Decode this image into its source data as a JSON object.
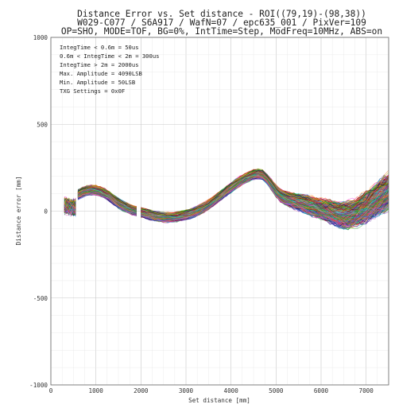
{
  "chart_data": {
    "type": "line",
    "title_lines": [
      "Distance Error vs. Set distance - ROI((79,19)-(98,38))",
      "W029-C077 / S6A917 / WafN=07 / epc635_001 / PixVer=109",
      "OP=SHO, MODE=TOF, BG=0%, IntTime=Step, ModFreq=10MHz, ABS=on"
    ],
    "xlabel": "Set distance [mm]",
    "ylabel": "Distance error [mm]",
    "xlim": [
      0,
      7500
    ],
    "ylim": [
      -1000,
      1000
    ],
    "x_ticks": [
      0,
      1000,
      2000,
      3000,
      4000,
      5000,
      6000,
      7000
    ],
    "y_ticks": [
      -1000,
      -500,
      0,
      500,
      1000
    ],
    "grid": true,
    "settings_box": [
      "IntegTime < 0.6m = 50us",
      "0.6m < IntegTime < 2m = 300us",
      "IntegTime > 2m = 2000us",
      "Max. Amplitude = 4090LSB",
      "Min. Amplitude = 50LSB",
      "TXG Settings = 0x0F"
    ],
    "series_count": 400,
    "series_colors": [
      "#e6194b",
      "#3cb44b",
      "#4363d8",
      "#f58231",
      "#911eb4",
      "#46f0f0",
      "#f032e6",
      "#bcbd22",
      "#008080",
      "#9a6324",
      "#800000",
      "#000075",
      "#808000",
      "#ff7f0e",
      "#1f77b4",
      "#2ca02c",
      "#d62728",
      "#9467bd",
      "#17becf",
      "#e377c2",
      "#8c564b",
      "#00a000"
    ],
    "segments": [
      {
        "x": [
          300,
          350,
          400,
          450,
          500,
          550
        ],
        "center": [
          30,
          28,
          25,
          22,
          20,
          20
        ],
        "spread": [
          55,
          55,
          55,
          55,
          55,
          55
        ]
      },
      {
        "x": [
          600,
          700,
          800,
          900,
          1000,
          1100,
          1200,
          1300,
          1400,
          1500,
          1600,
          1700,
          1800,
          1900
        ],
        "center": [
          95,
          108,
          118,
          122,
          120,
          112,
          100,
          85,
          65,
          45,
          30,
          18,
          8,
          0
        ]
      },
      {
        "x": [
          2000,
          2100,
          2200,
          2300,
          2400,
          2500,
          2600,
          2700,
          2800,
          2900,
          3000,
          3100,
          3200,
          3300,
          3400,
          3500,
          3600,
          3700,
          3800,
          3900,
          4000,
          4100,
          4200,
          4300,
          4400,
          4500,
          4600,
          4700,
          4800,
          4900,
          5000,
          5100,
          5200,
          5300,
          5400,
          5500,
          5600,
          5700,
          5800,
          5900,
          6000,
          6100,
          6200,
          6300,
          6400,
          6500,
          6600,
          6700,
          6800,
          6900,
          7000,
          7100,
          7200,
          7300,
          7400,
          7500
        ],
        "center": [
          -8,
          -15,
          -22,
          -28,
          -32,
          -35,
          -36,
          -35,
          -32,
          -28,
          -22,
          -15,
          -5,
          8,
          22,
          38,
          55,
          75,
          95,
          115,
          135,
          155,
          172,
          188,
          200,
          210,
          215,
          210,
          185,
          150,
          115,
          90,
          75,
          65,
          58,
          50,
          42,
          35,
          28,
          20,
          12,
          5,
          -5,
          -15,
          -22,
          -25,
          -22,
          -15,
          -5,
          8,
          22,
          40,
          58,
          78,
          98,
          115
        ],
        "spread_scale": [
          1.0,
          1.0,
          1.0,
          1.0,
          1.0,
          1.0,
          1.0,
          1.0,
          1.0,
          1.0,
          1.0,
          1.0,
          1.0,
          1.0,
          1.0,
          1.0,
          1.0,
          1.0,
          1.0,
          1.0,
          1.0,
          1.0,
          1.0,
          1.0,
          1.0,
          1.0,
          1.0,
          1.0,
          1.0,
          1.1,
          1.2,
          1.3,
          1.4,
          1.5,
          1.6,
          1.7,
          1.8,
          1.9,
          2.0,
          2.1,
          2.2,
          2.3,
          2.4,
          2.5,
          2.6,
          2.7,
          2.8,
          2.9,
          3.0,
          3.1,
          3.2,
          3.3,
          3.4,
          3.5,
          3.6,
          3.7
        ]
      }
    ],
    "base_spread": 22
  }
}
